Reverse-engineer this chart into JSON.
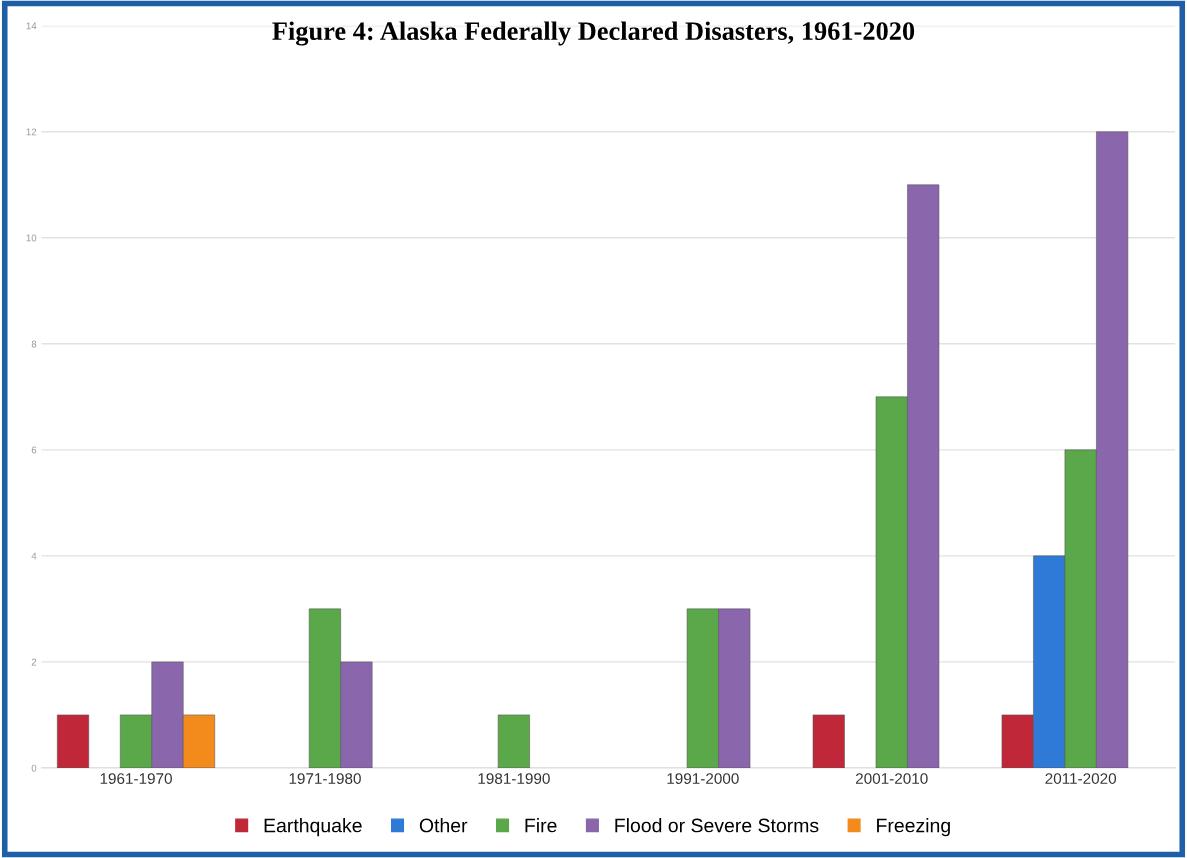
{
  "chart_data": {
    "type": "bar",
    "title": "Figure 4: Alaska Federally Declared Disasters, 1961-2020",
    "categories": [
      "1961-1970",
      "1971-1980",
      "1981-1990",
      "1991-2000",
      "2001-2010",
      "2011-2020"
    ],
    "series": [
      {
        "name": "Earthquake",
        "color": "#c0283a",
        "values": [
          1,
          null,
          null,
          null,
          1,
          1
        ]
      },
      {
        "name": "Other",
        "color": "#2f7ad6",
        "values": [
          null,
          null,
          null,
          null,
          null,
          4
        ]
      },
      {
        "name": "Fire",
        "color": "#5aa84a",
        "values": [
          1,
          3,
          1,
          3,
          7,
          6
        ]
      },
      {
        "name": "Flood or Severe Storms",
        "color": "#8a66ad",
        "values": [
          2,
          2,
          null,
          3,
          11,
          12
        ]
      },
      {
        "name": "Freezing",
        "color": "#f28a1c",
        "values": [
          1,
          null,
          null,
          null,
          null,
          null
        ]
      }
    ],
    "ylim": [
      0,
      14
    ],
    "yticks": [
      0,
      2,
      4,
      6,
      8,
      10,
      12,
      14
    ],
    "grid": "y",
    "legend": "bottom"
  }
}
